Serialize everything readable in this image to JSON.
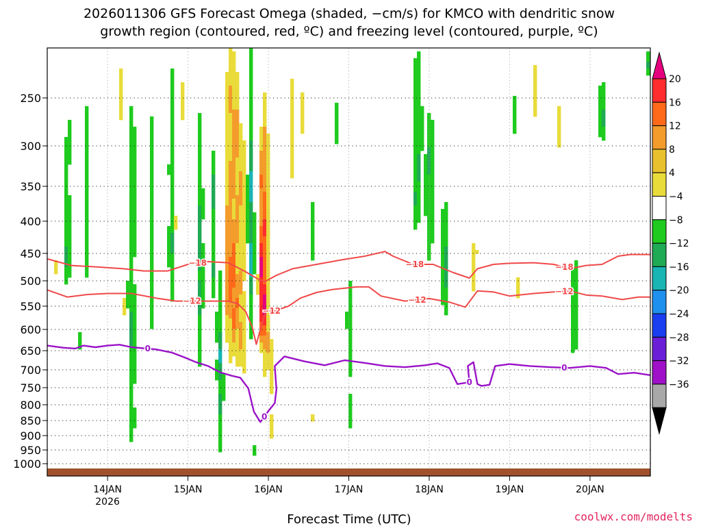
{
  "chart_data": {
    "type": "heatmap",
    "title_line1": "2026011306 GFS Forecast Omega (shaded, −cm/s) for KMCO with dendritic snow",
    "title_line2": "growth region (contoured, red, ºC) and freezing level (contoured, purple, ºC)",
    "xlabel": "Forecast Time (UTC)",
    "credit": "coolwx.com/modelts",
    "x_ticks": [
      {
        "day": 14,
        "label": "14JAN",
        "sublabel": "2026"
      },
      {
        "day": 15,
        "label": "15JAN"
      },
      {
        "day": 16,
        "label": "16JAN"
      },
      {
        "day": 17,
        "label": "17JAN"
      },
      {
        "day": 18,
        "label": "18JAN"
      },
      {
        "day": 19,
        "label": "19JAN"
      },
      {
        "day": 20,
        "label": "20JAN"
      }
    ],
    "xlim_days": [
      13.25,
      20.75
    ],
    "y_ticks": [
      250,
      300,
      350,
      400,
      450,
      500,
      550,
      600,
      650,
      700,
      750,
      800,
      850,
      900,
      950,
      1000
    ],
    "ylim_hpa": [
      200,
      1010
    ],
    "colorbar": {
      "tick_labels": [
        "20",
        "16",
        "12",
        "8",
        "4",
        "−4",
        "−8",
        "−12",
        "−16",
        "−20",
        "−24",
        "−28",
        "−32",
        "−36"
      ],
      "colors": [
        "#e6007e",
        "#ff2d2d",
        "#ff6a1a",
        "#f39c2c",
        "#e8c02e",
        "#e9dc3a",
        "#ffffff",
        "#1ecb1e",
        "#1faa55",
        "#19b5b5",
        "#1f90ee",
        "#1a3ff0",
        "#6a1fd6",
        "#a010c8",
        "#a8a8a8",
        "#000000"
      ]
    },
    "series": [
      {
        "name": "dendritic -18C",
        "color": "#f04848",
        "label": "−18",
        "label_days": [
          15.12,
          17.82,
          19.68
        ],
        "points": [
          [
            13.25,
            460
          ],
          [
            13.55,
            472
          ],
          [
            13.9,
            475
          ],
          [
            14.2,
            478
          ],
          [
            14.45,
            482
          ],
          [
            14.75,
            482
          ],
          [
            15.0,
            470
          ],
          [
            15.25,
            465
          ],
          [
            15.5,
            467
          ],
          [
            15.7,
            482
          ],
          [
            15.85,
            495
          ],
          [
            15.95,
            502
          ],
          [
            16.1,
            490
          ],
          [
            16.3,
            478
          ],
          [
            16.6,
            470
          ],
          [
            16.9,
            462
          ],
          [
            17.2,
            455
          ],
          [
            17.45,
            447
          ],
          [
            17.55,
            455
          ],
          [
            17.8,
            470
          ],
          [
            18.05,
            470
          ],
          [
            18.3,
            485
          ],
          [
            18.5,
            495
          ],
          [
            18.6,
            478
          ],
          [
            18.8,
            470
          ],
          [
            19.0,
            468
          ],
          [
            19.3,
            467
          ],
          [
            19.55,
            470
          ],
          [
            19.75,
            478
          ],
          [
            19.95,
            472
          ],
          [
            20.15,
            470
          ],
          [
            20.35,
            455
          ],
          [
            20.5,
            452
          ],
          [
            20.75,
            452
          ]
        ]
      },
      {
        "name": "dendritic -12C",
        "color": "#f04848",
        "label": "−12",
        "label_days": [
          15.05,
          16.04,
          17.85,
          19.68
        ],
        "points": [
          [
            13.25,
            518
          ],
          [
            13.5,
            532
          ],
          [
            13.75,
            527
          ],
          [
            14.0,
            525
          ],
          [
            14.3,
            525
          ],
          [
            14.6,
            534
          ],
          [
            14.85,
            540
          ],
          [
            15.2,
            540
          ],
          [
            15.5,
            540
          ],
          [
            15.62,
            545
          ],
          [
            15.72,
            562
          ],
          [
            15.8,
            595
          ],
          [
            15.85,
            635
          ],
          [
            15.9,
            600
          ],
          [
            15.97,
            560
          ],
          [
            16.08,
            560
          ],
          [
            16.25,
            550
          ],
          [
            16.4,
            534
          ],
          [
            16.6,
            523
          ],
          [
            16.8,
            517
          ],
          [
            17.1,
            512
          ],
          [
            17.25,
            512
          ],
          [
            17.4,
            530
          ],
          [
            17.7,
            540
          ],
          [
            18.0,
            535
          ],
          [
            18.25,
            542
          ],
          [
            18.45,
            552
          ],
          [
            18.6,
            520
          ],
          [
            18.8,
            522
          ],
          [
            19.0,
            530
          ],
          [
            19.3,
            525
          ],
          [
            19.55,
            522
          ],
          [
            19.75,
            520
          ],
          [
            19.95,
            528
          ],
          [
            20.15,
            530
          ],
          [
            20.4,
            537
          ],
          [
            20.6,
            532
          ],
          [
            20.75,
            532
          ]
        ]
      },
      {
        "name": "freezing level 0C",
        "color": "#9a12c8",
        "label": "0",
        "label_days": [
          14.5,
          15.95,
          18.5,
          19.68
        ],
        "points": [
          [
            13.25,
            638
          ],
          [
            13.45,
            643
          ],
          [
            13.6,
            645
          ],
          [
            13.7,
            638
          ],
          [
            13.85,
            642
          ],
          [
            14.0,
            638
          ],
          [
            14.15,
            636
          ],
          [
            14.3,
            642
          ],
          [
            14.6,
            647
          ],
          [
            14.8,
            655
          ],
          [
            14.95,
            667
          ],
          [
            15.1,
            680
          ],
          [
            15.25,
            690
          ],
          [
            15.4,
            707
          ],
          [
            15.55,
            717
          ],
          [
            15.65,
            722
          ],
          [
            15.75,
            752
          ],
          [
            15.82,
            822
          ],
          [
            15.9,
            855
          ],
          [
            16.0,
            820
          ],
          [
            16.08,
            795
          ],
          [
            16.1,
            755
          ],
          [
            16.08,
            690
          ],
          [
            16.2,
            665
          ],
          [
            16.45,
            678
          ],
          [
            16.7,
            688
          ],
          [
            16.95,
            675
          ],
          [
            17.2,
            682
          ],
          [
            17.45,
            690
          ],
          [
            17.7,
            693
          ],
          [
            17.95,
            688
          ],
          [
            18.1,
            683
          ],
          [
            18.25,
            695
          ],
          [
            18.35,
            740
          ],
          [
            18.5,
            735
          ],
          [
            18.48,
            690
          ],
          [
            18.55,
            680
          ],
          [
            18.6,
            740
          ],
          [
            18.65,
            745
          ],
          [
            18.75,
            742
          ],
          [
            18.82,
            690
          ],
          [
            19.0,
            685
          ],
          [
            19.25,
            690
          ],
          [
            19.5,
            693
          ],
          [
            19.75,
            695
          ],
          [
            20.0,
            690
          ],
          [
            20.2,
            695
          ],
          [
            20.35,
            712
          ],
          [
            20.55,
            708
          ],
          [
            20.75,
            715
          ]
        ]
      }
    ]
  }
}
